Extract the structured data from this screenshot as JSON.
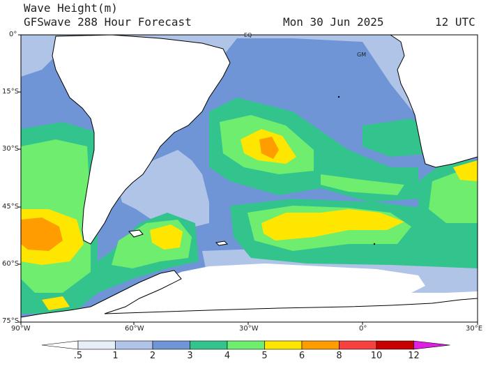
{
  "title": {
    "line1": "Wave Height(m)",
    "line2": "GFSwave 288 Hour Forecast",
    "date": "Mon 30 Jun 2025",
    "time": "12 UTC"
  },
  "lat_labels": [
    "0°",
    "15°S",
    "30°S",
    "45°S",
    "60°S",
    "75°S"
  ],
  "lon_labels": [
    "90°W",
    "60°W",
    "30°W",
    "0°",
    "30°E"
  ],
  "map_labels": {
    "eq": "EQ",
    "gm": "GM"
  },
  "colorbar": {
    "ticks": [
      ".5",
      "1",
      "2",
      "3",
      "4",
      "5",
      "6",
      "8",
      "10",
      "12"
    ],
    "colors": [
      "#e8eef8",
      "#b0c4e8",
      "#6f95d6",
      "#33c48e",
      "#6fed6f",
      "#ffe600",
      "#ff9c00",
      "#f84040",
      "#c80000",
      "#e020e0"
    ]
  }
}
